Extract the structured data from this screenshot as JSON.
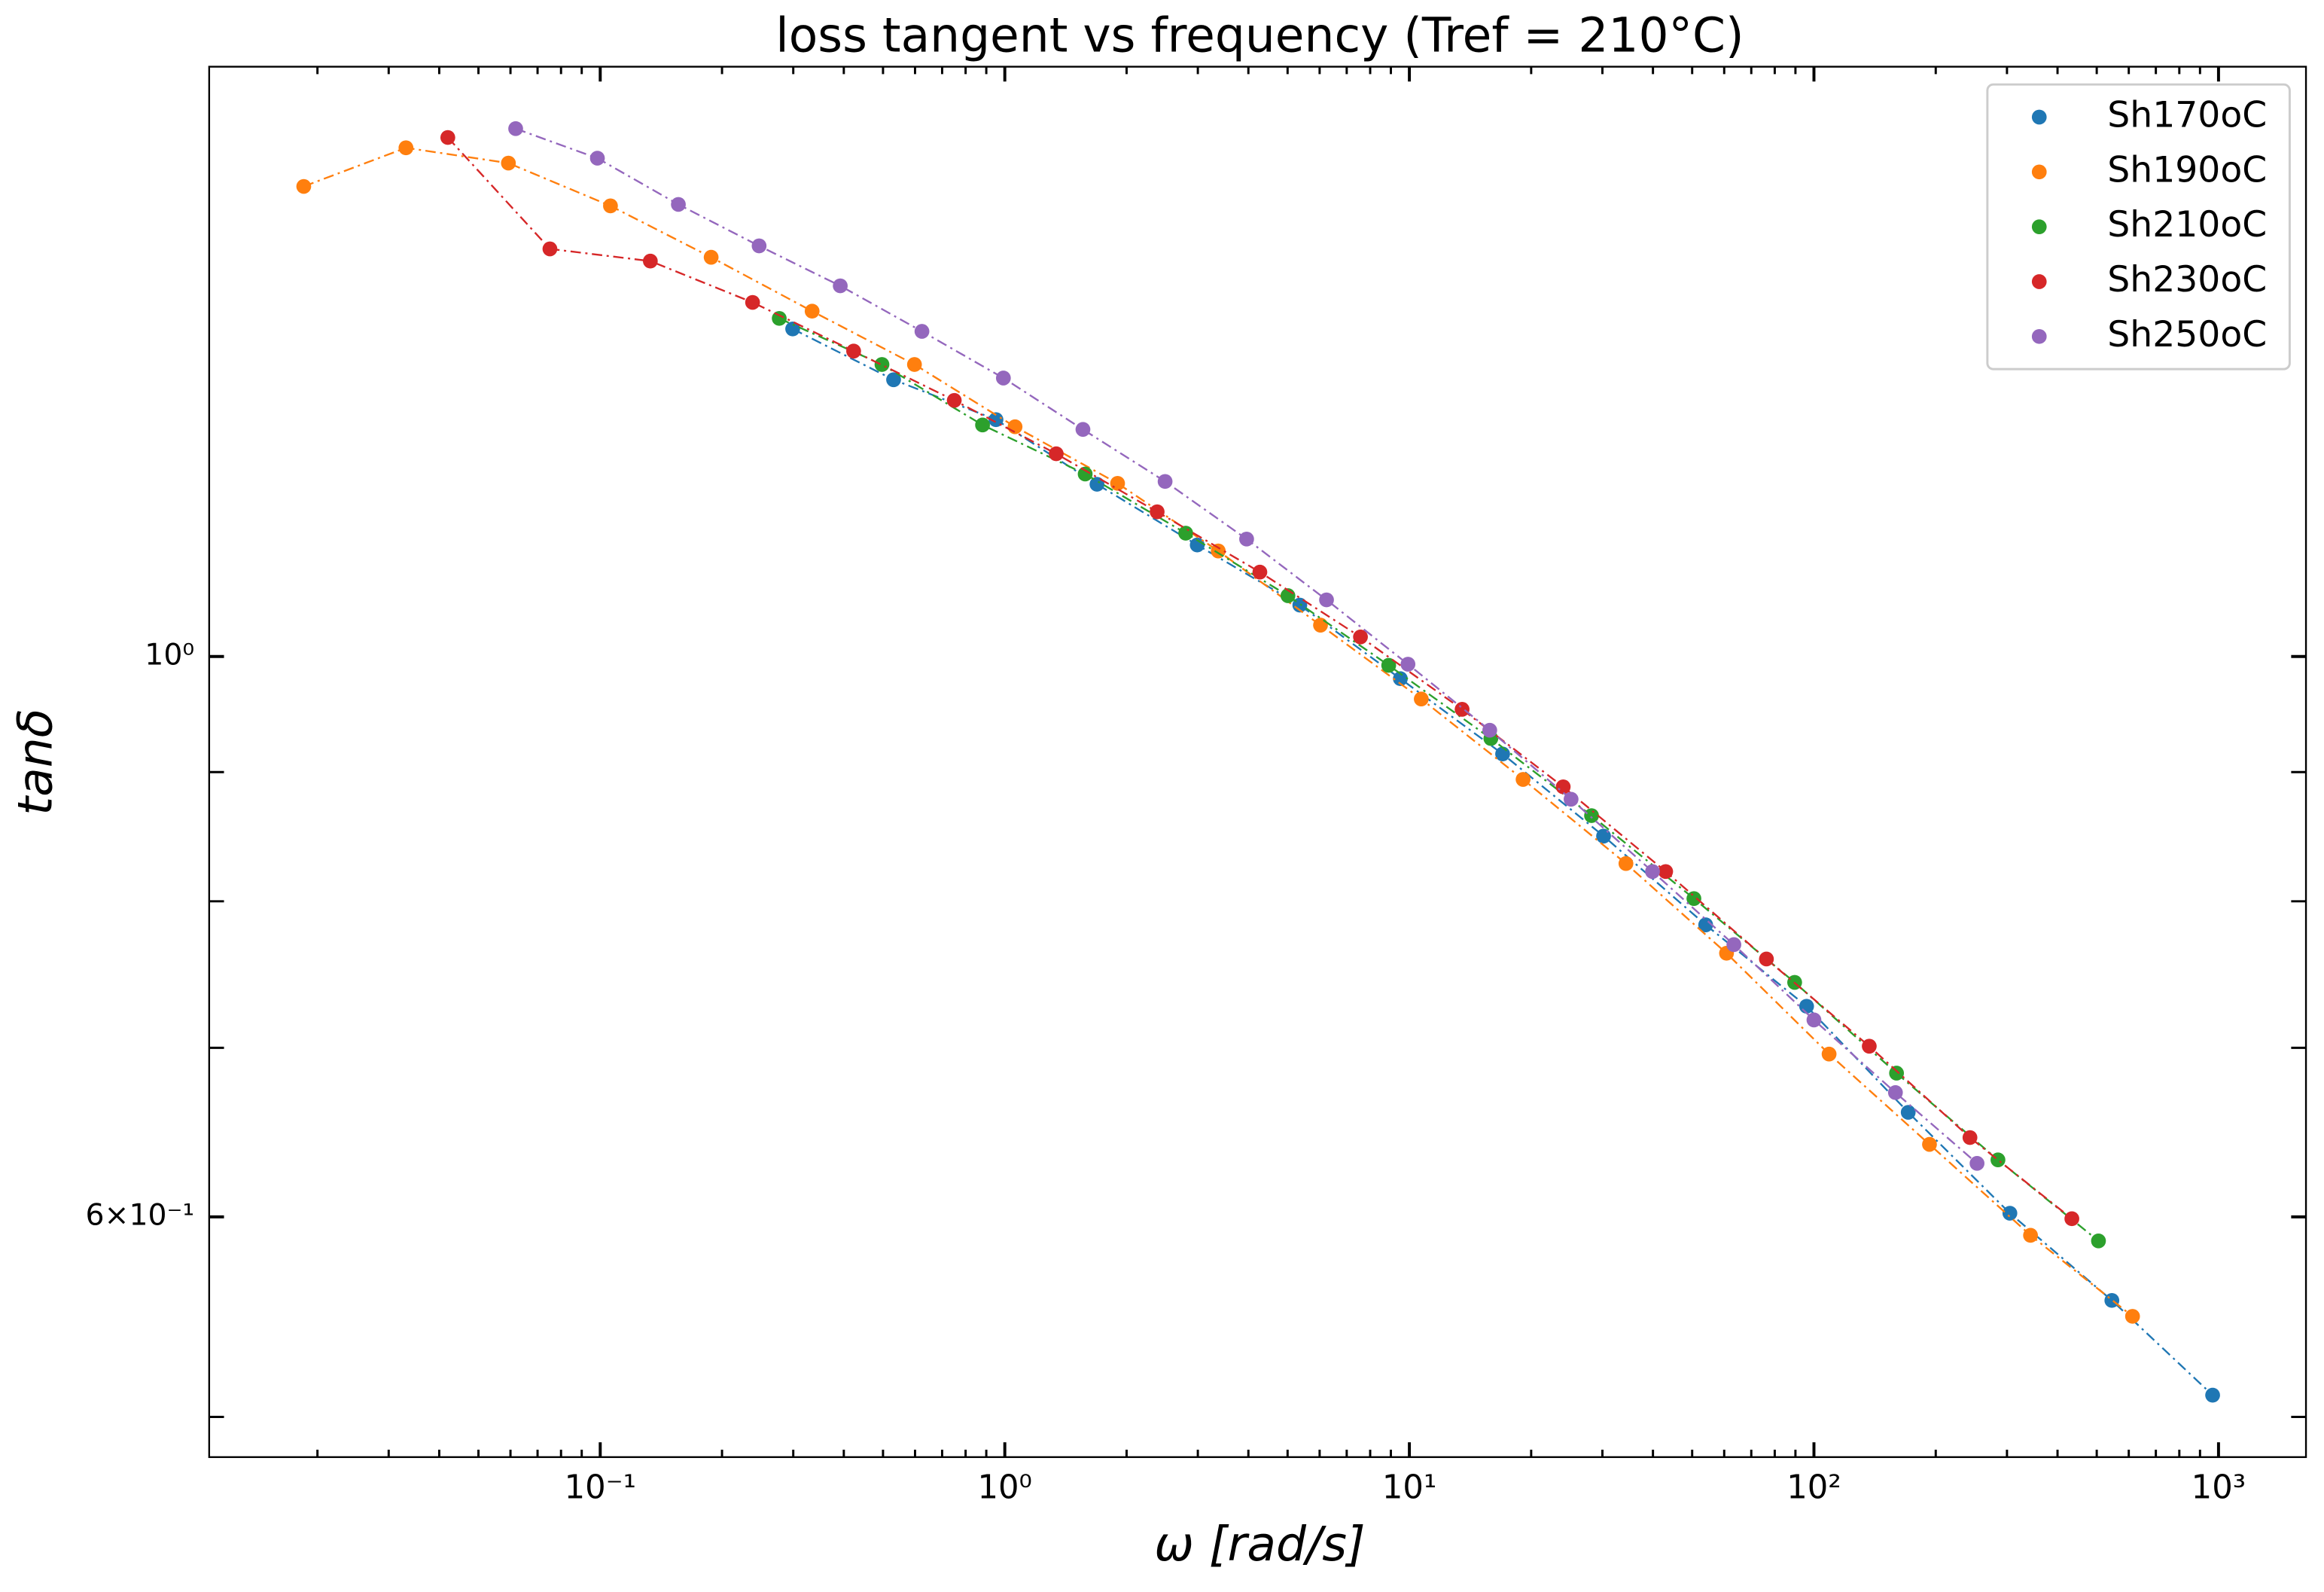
{
  "chart_data": {
    "type": "line",
    "title": "loss tangent vs frequency (Tref = 210°C)",
    "x_label": "ω   [rad/s]",
    "y_label": "tanδ",
    "log_x": true,
    "log_y": true,
    "markers": true,
    "line_style": "dashdot",
    "legend": "upper right",
    "xlim": [
      0.0108,
      1645
    ],
    "ylim": [
      0.482,
      1.712
    ],
    "xticks": [
      {
        "value": 0.1,
        "label": "10⁻¹"
      },
      {
        "value": 1,
        "label": "10⁰"
      },
      {
        "value": 10,
        "label": "10¹"
      },
      {
        "value": 100,
        "label": "10²"
      },
      {
        "value": 1000,
        "label": "10³"
      }
    ],
    "xminorticks": [
      0.02,
      0.03,
      0.04,
      0.05,
      0.06,
      0.07,
      0.08,
      0.09,
      0.2,
      0.3,
      0.4,
      0.5,
      0.6,
      0.7,
      0.8,
      0.9,
      2,
      3,
      4,
      5,
      6,
      7,
      8,
      9,
      20,
      30,
      40,
      50,
      60,
      70,
      80,
      90,
      200,
      300,
      400,
      500,
      600,
      700,
      800,
      900
    ],
    "yticks": [
      {
        "value": 0.6,
        "label": "6×10⁻¹"
      },
      {
        "value": 1,
        "label": "10⁰"
      }
    ],
    "yminorticks": [
      0.5,
      0.7,
      0.8,
      0.9
    ],
    "series": [
      {
        "name": "Sh170oC",
        "color": "#1f77b4",
        "x": [
          0.299,
          0.531,
          0.951,
          1.69,
          2.99,
          5.36,
          9.5,
          17.0,
          30.2,
          54.0,
          95.9,
          171,
          305,
          545,
          967
        ],
        "values": [
          1.348,
          1.287,
          1.241,
          1.17,
          1.107,
          1.048,
          0.98,
          0.915,
          0.849,
          0.783,
          0.727,
          0.66,
          0.602,
          0.556,
          0.51
        ]
      },
      {
        "name": "Sh190oC",
        "color": "#ff7f0e",
        "x": [
          0.0185,
          0.0331,
          0.0593,
          0.106,
          0.188,
          0.334,
          0.598,
          1.06,
          1.9,
          3.37,
          6.03,
          10.7,
          19.1,
          34.3,
          60.8,
          109,
          193,
          343,
          613
        ],
        "values": [
          1.535,
          1.59,
          1.568,
          1.508,
          1.439,
          1.37,
          1.305,
          1.233,
          1.171,
          1.101,
          1.029,
          0.962,
          0.894,
          0.828,
          0.763,
          0.696,
          0.641,
          0.59,
          0.548
        ]
      },
      {
        "name": "Sh210oC",
        "color": "#2ca02c",
        "x": [
          0.277,
          0.497,
          0.881,
          1.58,
          2.8,
          5.01,
          8.89,
          15.9,
          28.2,
          50.5,
          89.6,
          160,
          285,
          505
        ],
        "values": [
          1.361,
          1.305,
          1.235,
          1.181,
          1.119,
          1.057,
          0.992,
          0.928,
          0.865,
          0.802,
          0.743,
          0.684,
          0.632,
          0.587
        ]
      },
      {
        "name": "Sh230oC",
        "color": "#d62728",
        "x": [
          0.042,
          0.0751,
          0.133,
          0.238,
          0.423,
          0.75,
          1.34,
          2.38,
          4.27,
          7.57,
          13.5,
          24.0,
          43.0,
          76.3,
          137,
          243,
          434
        ],
        "values": [
          1.605,
          1.45,
          1.434,
          1.381,
          1.321,
          1.263,
          1.203,
          1.141,
          1.08,
          1.018,
          0.953,
          0.888,
          0.822,
          0.759,
          0.701,
          0.645,
          0.599
        ]
      },
      {
        "name": "Sh250oC",
        "color": "#9467bd",
        "x": [
          0.0618,
          0.0984,
          0.156,
          0.247,
          0.392,
          0.624,
          0.992,
          1.56,
          2.49,
          3.96,
          6.24,
          9.92,
          15.8,
          25.1,
          39.9,
          63.4,
          100,
          159,
          253
        ],
        "values": [
          1.618,
          1.575,
          1.51,
          1.454,
          1.402,
          1.345,
          1.289,
          1.23,
          1.173,
          1.113,
          1.053,
          0.993,
          0.935,
          0.878,
          0.822,
          0.769,
          0.718,
          0.672,
          0.63
        ]
      }
    ]
  }
}
